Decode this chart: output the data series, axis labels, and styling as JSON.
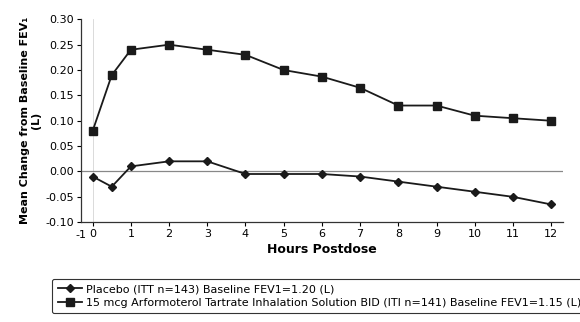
{
  "x_hours": [
    0,
    0.5,
    1,
    2,
    3,
    4,
    5,
    6,
    7,
    8,
    9,
    10,
    11,
    12
  ],
  "placebo": [
    -0.01,
    -0.03,
    0.01,
    0.02,
    0.02,
    -0.005,
    -0.005,
    -0.005,
    -0.01,
    -0.02,
    -0.03,
    -0.04,
    -0.05,
    -0.065
  ],
  "arformoterol": [
    0.08,
    0.19,
    0.24,
    0.25,
    0.24,
    0.23,
    0.2,
    0.187,
    0.165,
    0.13,
    0.13,
    0.11,
    0.105,
    0.1
  ],
  "ylabel": "Mean Change from Baseline FEV₁\n(L)",
  "xlabel": "Hours Postdose",
  "ylim": [
    -0.1,
    0.3
  ],
  "yticks": [
    -0.1,
    -0.05,
    0.0,
    0.05,
    0.1,
    0.15,
    0.2,
    0.25,
    0.3
  ],
  "xlim": [
    -0.5,
    12.5
  ],
  "plot_xlim": [
    0,
    12
  ],
  "xticks": [
    0,
    1,
    2,
    3,
    4,
    5,
    6,
    7,
    8,
    9,
    10,
    11,
    12
  ],
  "xticklabels": [
    "0",
    "1",
    "2",
    "3",
    "4",
    "5",
    "6",
    "7",
    "8",
    "9",
    "10",
    "11",
    "12"
  ],
  "legend1": "Placebo (ITT n=143) Baseline FEV1=1.20 (L)",
  "legend2": "15 mcg Arformoterol Tartrate Inhalation Solution BID (ITI n=141) Baseline FEV1=1.15 (L)",
  "line_color": "#1a1a1a",
  "bg_color": "#ffffff",
  "zero_line_color": "#888888",
  "font_size_tick": 8,
  "font_size_label": 9,
  "font_size_legend": 8
}
